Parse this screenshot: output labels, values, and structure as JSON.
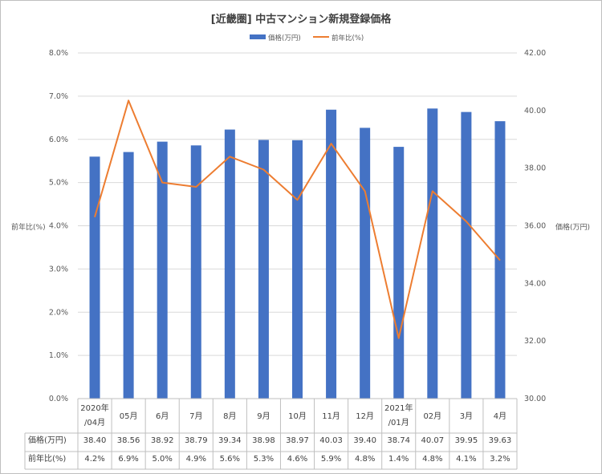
{
  "chart_data": {
    "type": "bar+line",
    "title": "[近畿圏] 中古マンション新規登録価格",
    "categories": [
      [
        "2020年",
        "/04月"
      ],
      [
        "05月"
      ],
      [
        "6月"
      ],
      [
        "7月"
      ],
      [
        "8月"
      ],
      [
        "9月"
      ],
      [
        "10月"
      ],
      [
        "11月"
      ],
      [
        "12月"
      ],
      [
        "2021年",
        "/01月"
      ],
      [
        "02月"
      ],
      [
        "3月"
      ],
      [
        "4月"
      ]
    ],
    "series": [
      {
        "name": "価格(万円)",
        "type": "bar",
        "axis": "right",
        "color": "#4472c4",
        "values": [
          38.4,
          38.56,
          38.92,
          38.79,
          39.34,
          38.98,
          38.97,
          40.03,
          39.4,
          38.74,
          40.07,
          39.95,
          39.63
        ],
        "labels": [
          "38.40",
          "38.56",
          "38.92",
          "38.79",
          "39.34",
          "38.98",
          "38.97",
          "40.03",
          "39.40",
          "38.74",
          "40.07",
          "39.95",
          "39.63"
        ]
      },
      {
        "name": "前年比(%)",
        "type": "line",
        "axis": "left",
        "color": "#ed7d31",
        "values": [
          4.2,
          6.9,
          5.0,
          4.9,
          5.6,
          5.3,
          4.6,
          5.9,
          4.8,
          1.4,
          4.8,
          4.1,
          3.2
        ],
        "labels": [
          "4.2%",
          "6.9%",
          "5.0%",
          "4.9%",
          "5.6%",
          "5.3%",
          "4.6%",
          "5.9%",
          "4.8%",
          "1.4%",
          "4.8%",
          "4.1%",
          "3.2%"
        ]
      }
    ],
    "y_left": {
      "label": "前年比(%)",
      "min": 0,
      "max": 8,
      "ticks": [
        "0.0%",
        "1.0%",
        "2.0%",
        "3.0%",
        "4.0%",
        "5.0%",
        "6.0%",
        "7.0%",
        "8.0%"
      ]
    },
    "y_right": {
      "label": "価格(万円)",
      "min": 30,
      "max": 42,
      "ticks": [
        "30.00",
        "32.00",
        "34.00",
        "36.00",
        "38.00",
        "40.00",
        "42.00"
      ]
    },
    "legend": "top-center",
    "grid": true,
    "data_table": {
      "row_labels": [
        "価格(万円)",
        "前年比(%)"
      ]
    }
  }
}
